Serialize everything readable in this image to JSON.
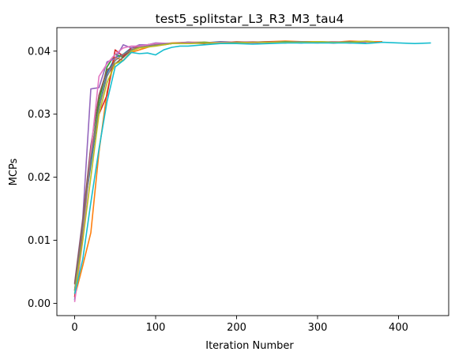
{
  "chart_data": {
    "type": "line",
    "title": "test5_splitstar_L3_R3_M3_tau4",
    "xlabel": "Iteration Number",
    "ylabel": "MCPs",
    "xlim": [
      -22,
      462
    ],
    "ylim": [
      -0.00195,
      0.04373
    ],
    "xticks": [
      0,
      100,
      200,
      300,
      400
    ],
    "xtick_labels": [
      "0",
      "100",
      "200",
      "300",
      "400"
    ],
    "yticks": [
      0.0,
      0.01,
      0.02,
      0.03,
      0.04
    ],
    "ytick_labels": [
      "0.00",
      "0.01",
      "0.02",
      "0.03",
      "0.04"
    ],
    "grid": false,
    "legend": "none",
    "series": [
      {
        "color": "#1f77b4",
        "x": [
          0,
          10,
          20,
          30,
          40,
          50,
          60,
          70,
          80,
          90,
          100,
          110,
          120,
          140,
          160,
          180,
          200,
          220,
          240,
          260,
          280,
          300,
          320,
          340,
          360,
          380
        ],
        "y": [
          0.0005,
          0.013,
          0.022,
          0.031,
          0.0365,
          0.039,
          0.0395,
          0.0405,
          0.0408,
          0.041,
          0.0412,
          0.041,
          0.0412,
          0.0414,
          0.0413,
          0.0415,
          0.0414,
          0.0414,
          0.0415,
          0.0414,
          0.0413,
          0.0415,
          0.0414,
          0.0413,
          0.0415,
          0.0414
        ]
      },
      {
        "color": "#ff7f0e",
        "x": [
          0,
          10,
          20,
          30,
          40,
          50,
          60,
          70,
          80,
          100,
          120,
          140,
          160,
          180,
          200,
          220,
          240,
          260,
          280,
          300,
          320,
          340,
          360,
          380
        ],
        "y": [
          0.001,
          0.006,
          0.0112,
          0.024,
          0.0335,
          0.039,
          0.0385,
          0.0398,
          0.0402,
          0.041,
          0.0413,
          0.0414,
          0.0414,
          0.0413,
          0.0415,
          0.0414,
          0.0415,
          0.0416,
          0.0415,
          0.0415,
          0.0414,
          0.0416,
          0.0415,
          0.0415
        ]
      },
      {
        "color": "#2ca02c",
        "x": [
          0,
          10,
          20,
          30,
          40,
          50,
          60,
          70,
          80,
          100,
          120,
          140,
          160,
          180,
          200,
          220,
          240,
          260,
          280,
          300,
          320,
          340,
          360
        ],
        "y": [
          0.002,
          0.012,
          0.023,
          0.032,
          0.0375,
          0.0395,
          0.039,
          0.0405,
          0.0408,
          0.0412,
          0.0412,
          0.0413,
          0.0414,
          0.0413,
          0.0414,
          0.0414,
          0.0414,
          0.0415,
          0.0414,
          0.0414,
          0.0413,
          0.0415,
          0.0414
        ]
      },
      {
        "color": "#d62728",
        "x": [
          0,
          10,
          20,
          30,
          40,
          50,
          60,
          70,
          80,
          100,
          120,
          140,
          160,
          180,
          200,
          220,
          240,
          260,
          280,
          300,
          320,
          340
        ],
        "y": [
          0.001,
          0.011,
          0.024,
          0.03,
          0.033,
          0.0402,
          0.0392,
          0.0405,
          0.0408,
          0.041,
          0.0412,
          0.0413,
          0.0413,
          0.0414,
          0.0414,
          0.0414,
          0.0415,
          0.0414,
          0.0415,
          0.0414,
          0.0413,
          0.0414
        ]
      },
      {
        "color": "#9467bd",
        "x": [
          0,
          10,
          20,
          30,
          40,
          50,
          60,
          70,
          80,
          90,
          100,
          120,
          140,
          160,
          180,
          200,
          220,
          240,
          260,
          280,
          300,
          320,
          340,
          360
        ],
        "y": [
          0.0032,
          0.0135,
          0.034,
          0.0342,
          0.0383,
          0.0388,
          0.041,
          0.0405,
          0.041,
          0.041,
          0.0413,
          0.0412,
          0.0414,
          0.0413,
          0.0413,
          0.0414,
          0.0413,
          0.0414,
          0.0414,
          0.0415,
          0.0414,
          0.0415,
          0.0413,
          0.0414
        ]
      },
      {
        "color": "#8c564b",
        "x": [
          0,
          10,
          20,
          30,
          40,
          50,
          60,
          70,
          80,
          100,
          120,
          140,
          160,
          180,
          200,
          220,
          240,
          260,
          280,
          300,
          320,
          340,
          360
        ],
        "y": [
          0.003,
          0.013,
          0.025,
          0.033,
          0.037,
          0.038,
          0.039,
          0.0402,
          0.0406,
          0.041,
          0.0412,
          0.0413,
          0.0412,
          0.0414,
          0.0413,
          0.0414,
          0.0414,
          0.0413,
          0.0415,
          0.0414,
          0.0414,
          0.0415,
          0.0414
        ]
      },
      {
        "color": "#e377c2",
        "x": [
          0,
          10,
          20,
          30,
          40,
          50,
          60,
          70,
          80,
          100,
          120,
          140,
          160,
          180,
          200,
          220,
          240,
          260,
          280,
          300,
          320,
          340,
          360
        ],
        "y": [
          0.0002,
          0.01,
          0.024,
          0.036,
          0.038,
          0.0395,
          0.0405,
          0.0408,
          0.0408,
          0.0412,
          0.0412,
          0.0413,
          0.0413,
          0.0414,
          0.0414,
          0.0415,
          0.0414,
          0.0414,
          0.0414,
          0.0413,
          0.0415,
          0.0414,
          0.0414
        ]
      },
      {
        "color": "#7f7f7f",
        "x": [
          0,
          10,
          20,
          30,
          40,
          50,
          60,
          70,
          80,
          100,
          120,
          140,
          160,
          180,
          200,
          220,
          240,
          260,
          280,
          300,
          320,
          340,
          360
        ],
        "y": [
          0.002,
          0.012,
          0.023,
          0.031,
          0.036,
          0.0385,
          0.0395,
          0.0402,
          0.0406,
          0.041,
          0.0412,
          0.0412,
          0.0413,
          0.0413,
          0.0414,
          0.0414,
          0.0414,
          0.0414,
          0.0415,
          0.0414,
          0.0414,
          0.0414,
          0.0413
        ]
      },
      {
        "color": "#bcbd22",
        "x": [
          0,
          10,
          20,
          30,
          40,
          50,
          60,
          70,
          80,
          100,
          120,
          140,
          160,
          180,
          200,
          220,
          240,
          260,
          280,
          300,
          320,
          340,
          360,
          370
        ],
        "y": [
          0.0015,
          0.01,
          0.02,
          0.03,
          0.035,
          0.038,
          0.0385,
          0.04,
          0.0405,
          0.0408,
          0.0412,
          0.0412,
          0.0413,
          0.0413,
          0.0413,
          0.0414,
          0.0414,
          0.0414,
          0.0414,
          0.0415,
          0.0414,
          0.0414,
          0.0416,
          0.0415
        ]
      },
      {
        "color": "#17becf",
        "x": [
          0,
          10,
          20,
          30,
          40,
          50,
          60,
          70,
          80,
          90,
          100,
          110,
          120,
          130,
          140,
          160,
          180,
          200,
          220,
          240,
          260,
          280,
          300,
          320,
          340,
          360,
          380,
          400,
          420,
          440
        ],
        "y": [
          0.0015,
          0.007,
          0.016,
          0.0245,
          0.032,
          0.0375,
          0.0385,
          0.0398,
          0.0396,
          0.0397,
          0.0394,
          0.0402,
          0.0406,
          0.0408,
          0.0408,
          0.041,
          0.0412,
          0.0412,
          0.0411,
          0.0412,
          0.0413,
          0.0413,
          0.0413,
          0.0413,
          0.0413,
          0.0412,
          0.0414,
          0.0413,
          0.0412,
          0.0413
        ]
      }
    ]
  }
}
